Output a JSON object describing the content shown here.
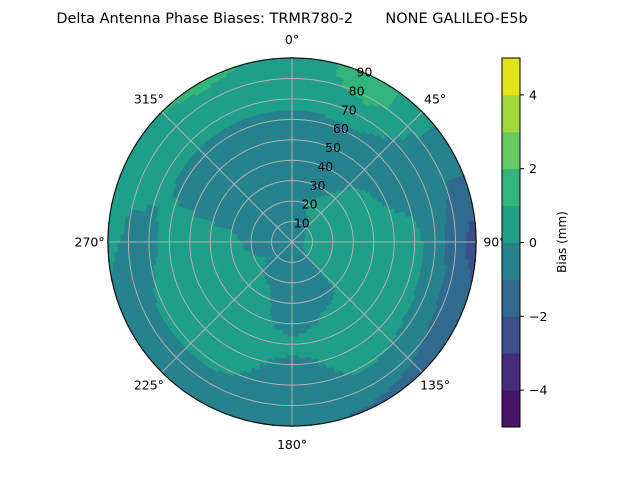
{
  "chart_data": {
    "type": "heatmap",
    "subtype": "polar-filled-contour",
    "title": "Delta Antenna Phase Biases: TRMR780-2       NONE GALILEO-E5b",
    "colorbar_label": "Bias (mm)",
    "colorbar_ticks": [
      "4",
      "2",
      "0",
      "−2",
      "−4"
    ],
    "colorbar_tick_values": [
      4,
      2,
      0,
      -2,
      -4
    ],
    "levels": [
      -5,
      -4,
      -3,
      -2,
      -1,
      0,
      1,
      2,
      3,
      4,
      5
    ],
    "colormap": [
      "#481467",
      "#472c7a",
      "#3d4e8a",
      "#306a8e",
      "#26838e",
      "#1f9e89",
      "#33b47a",
      "#67c962",
      "#a0da39",
      "#e2e418"
    ],
    "angular_ticks": [
      "0°",
      "45°",
      "90°",
      "135°",
      "180°",
      "225°",
      "270°",
      "315°"
    ],
    "angular_tick_values": [
      0,
      45,
      90,
      135,
      180,
      225,
      270,
      315
    ],
    "radial_ticks": [
      "10",
      "20",
      "30",
      "40",
      "50",
      "60",
      "70",
      "80",
      "90"
    ],
    "radial_tick_values": [
      10,
      20,
      30,
      40,
      50,
      60,
      70,
      80,
      90
    ],
    "theta_zero": "N",
    "theta_direction": "clockwise",
    "rlim": [
      0,
      90
    ],
    "grid": true,
    "azimuth": [
      0,
      30,
      60,
      90,
      120,
      150,
      180,
      210,
      240,
      270,
      300,
      330
    ],
    "zenith": [
      0,
      10,
      20,
      30,
      40,
      50,
      60,
      70,
      80,
      90
    ],
    "values": [
      [
        -0.5,
        -0.4,
        -0.3,
        -0.3,
        -0.5,
        -0.5,
        -0.3,
        0.3,
        0.5,
        0.6
      ],
      [
        -0.5,
        -0.2,
        0.2,
        -0.2,
        -0.5,
        -0.5,
        -0.2,
        0.5,
        1.3,
        1.5
      ],
      [
        -0.5,
        0.2,
        0.5,
        0.5,
        0.3,
        -0.3,
        -0.5,
        -0.6,
        -0.7,
        -0.5
      ],
      [
        -0.5,
        0.3,
        0.6,
        0.6,
        0.6,
        0.5,
        0.3,
        -0.5,
        -1.5,
        -2.5
      ],
      [
        -0.5,
        0.3,
        0.6,
        0.6,
        0.6,
        0.6,
        0.4,
        -0.3,
        -1.2,
        -1.5
      ],
      [
        -0.5,
        -0.3,
        -0.5,
        -0.4,
        0.3,
        0.5,
        0.4,
        0.2,
        -0.5,
        -1.2
      ],
      [
        -0.5,
        -0.5,
        -0.6,
        -0.6,
        -0.5,
        0.3,
        -0.3,
        -0.5,
        -0.6,
        -0.8
      ],
      [
        -0.5,
        -0.3,
        -0.2,
        0.3,
        0.5,
        0.5,
        0.4,
        0.2,
        -0.5,
        -0.6
      ],
      [
        -0.5,
        -0.2,
        0.2,
        0.5,
        0.6,
        0.6,
        0.6,
        0.3,
        -0.5,
        -0.6
      ],
      [
        -0.5,
        -0.2,
        -0.3,
        0.3,
        0.5,
        0.5,
        0.4,
        -0.3,
        -0.3,
        0.3
      ],
      [
        -0.5,
        -0.4,
        -0.4,
        -0.5,
        -0.6,
        -0.4,
        -0.2,
        0.3,
        0.5,
        0.8
      ],
      [
        -0.5,
        -0.4,
        -0.3,
        -0.4,
        -0.5,
        -0.5,
        -0.3,
        0.3,
        0.6,
        1.3
      ]
    ]
  }
}
